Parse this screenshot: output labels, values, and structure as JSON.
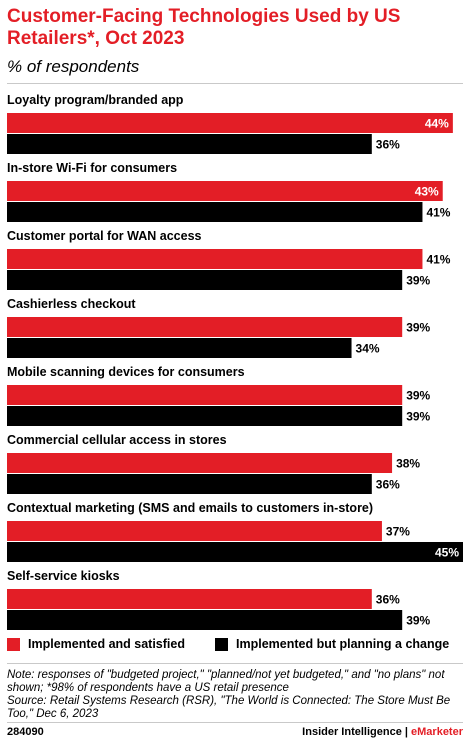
{
  "header": {
    "title": "Customer-Facing Technologies Used by US Retailers*, Oct 2023",
    "subtitle": "% of respondents"
  },
  "chart_data": {
    "type": "bar",
    "orientation": "horizontal",
    "categories": [
      "Loyalty program/branded app",
      "In-store Wi-Fi for consumers",
      "Customer portal for WAN access",
      "Cashierless checkout",
      "Mobile scanning devices for consumers",
      "Commercial cellular access in stores",
      "Contextual marketing (SMS and emails to customers in-store)",
      "Self-service kiosks"
    ],
    "series": [
      {
        "name": "Implemented and satisfied",
        "values": [
          44,
          43,
          41,
          39,
          39,
          38,
          37,
          36
        ],
        "color": "#e31e26"
      },
      {
        "name": "Implemented but planning a change",
        "values": [
          36,
          41,
          39,
          34,
          39,
          36,
          45,
          39
        ],
        "color": "#000000"
      }
    ],
    "value_suffix": "%",
    "xlim": [
      0,
      45
    ],
    "grid": false,
    "legend_position": "bottom"
  },
  "footer": {
    "note": "Note: responses of \"budgeted project,\" \"planned/not yet budgeted,\" and \"no plans\" not shown; *98% of respondents have a US retail presence",
    "source": "Source: Retail Systems Research (RSR), \"The World is Connected: The Store Must Be Too,\" Dec 6, 2023",
    "chart_id": "284090",
    "brand_left": "Insider Intelligence",
    "brand_sep": " | ",
    "brand_right": "eMarketer"
  }
}
